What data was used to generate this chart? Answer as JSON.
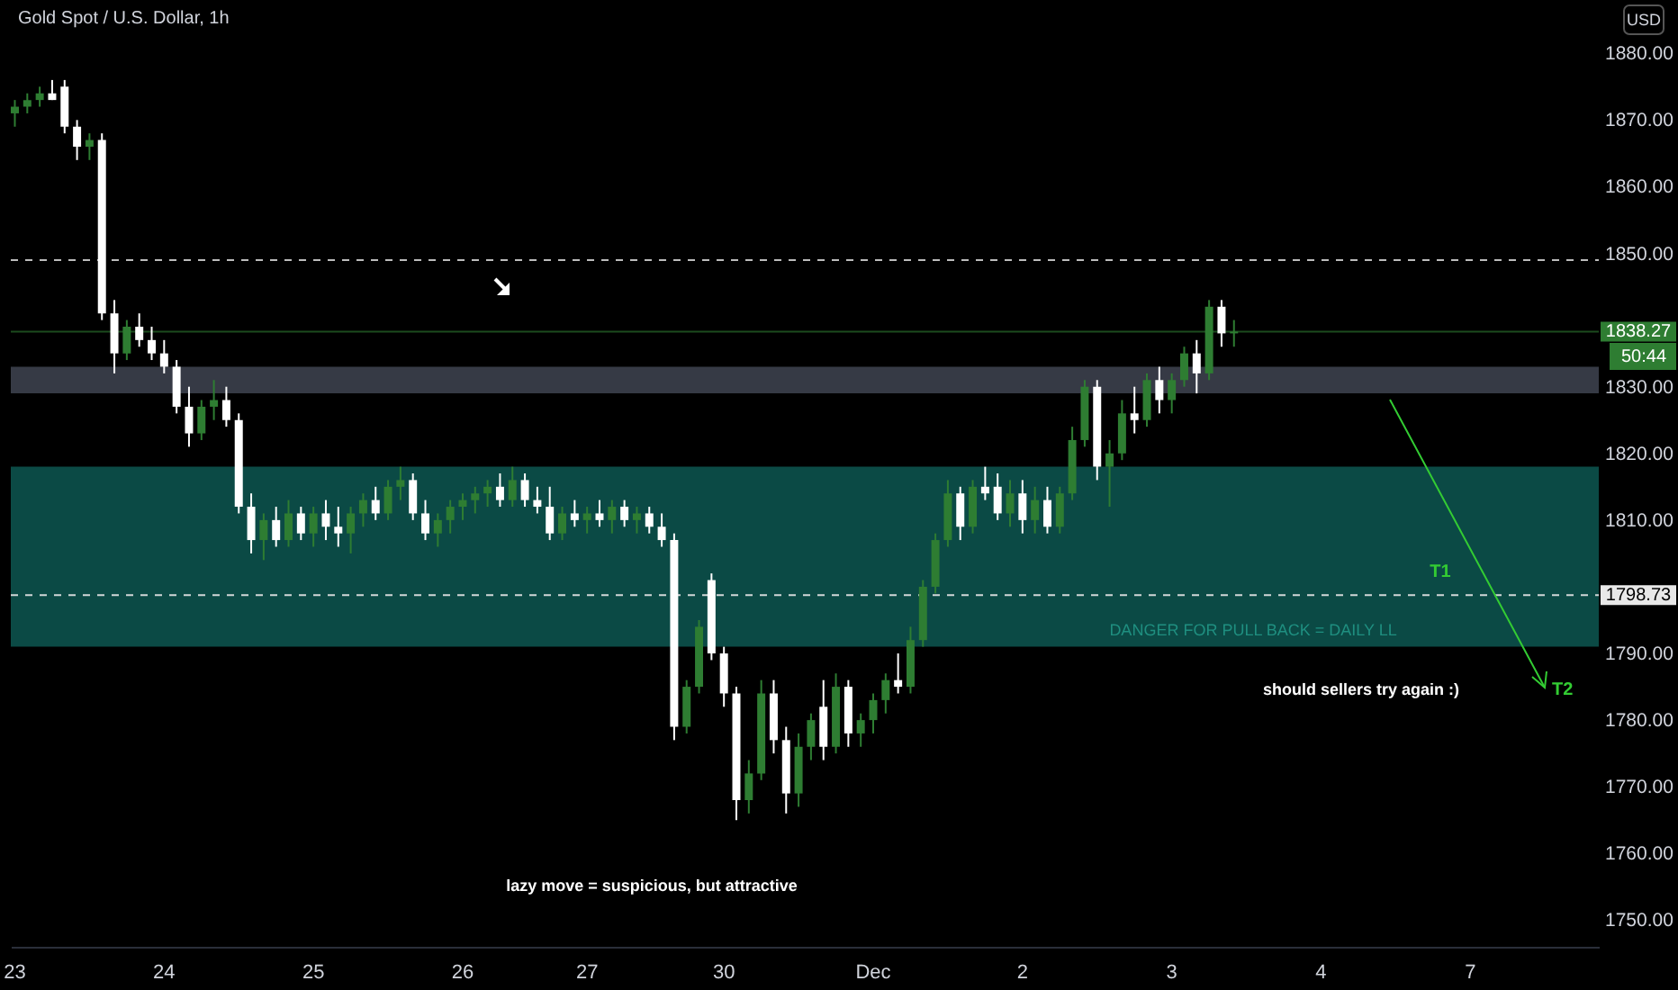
{
  "chart_data": {
    "type": "candlestick",
    "title": "Gold Spot / U.S. Dollar, 1h",
    "categories": [
      "23",
      null,
      null,
      null,
      null,
      null,
      null,
      null,
      null,
      null,
      null,
      null,
      "24",
      null,
      null,
      null,
      null,
      null,
      null,
      null,
      null,
      null,
      null,
      null,
      "25",
      null,
      null,
      null,
      null,
      null,
      null,
      null,
      null,
      null,
      null,
      null,
      "26",
      null,
      null,
      null,
      null,
      null,
      null,
      null,
      null,
      null,
      "27",
      null,
      null,
      null,
      null,
      null,
      null,
      null,
      null,
      null,
      null,
      "30",
      null,
      null,
      null,
      null,
      null,
      null,
      null,
      null,
      null,
      null,
      null,
      "Dec",
      null,
      null,
      null,
      null,
      null,
      null,
      null,
      null,
      null,
      null,
      null,
      "2",
      null,
      null,
      null,
      null,
      null,
      null,
      null,
      null,
      null,
      null,
      null,
      "3",
      null,
      null,
      null,
      null,
      null,
      null,
      null,
      null,
      null,
      null,
      null,
      "4",
      null,
      null,
      null,
      null,
      null,
      null,
      null,
      null,
      null,
      null,
      null,
      "7",
      null,
      null,
      null,
      null,
      null,
      null,
      null,
      null,
      null,
      null
    ],
    "ohlc": [
      [
        1871,
        1873,
        1869,
        1872
      ],
      [
        1872,
        1874,
        1871,
        1873
      ],
      [
        1873,
        1875,
        1872,
        1874
      ],
      [
        1874,
        1876,
        1873,
        1873
      ],
      [
        1875,
        1876,
        1868,
        1869
      ],
      [
        1869,
        1870,
        1864,
        1866
      ],
      [
        1866,
        1868,
        1864,
        1867
      ],
      [
        1867,
        1868,
        1840,
        1841
      ],
      [
        1841,
        1843,
        1832,
        1835
      ],
      [
        1835,
        1840,
        1834,
        1839
      ],
      [
        1839,
        1841,
        1836,
        1837
      ],
      [
        1837,
        1839,
        1834,
        1835
      ],
      [
        1835,
        1837,
        1832,
        1833
      ],
      [
        1833,
        1834,
        1826,
        1827
      ],
      [
        1827,
        1830,
        1821,
        1823
      ],
      [
        1823,
        1828,
        1822,
        1827
      ],
      [
        1827,
        1831,
        1825,
        1828
      ],
      [
        1828,
        1830,
        1824,
        1825
      ],
      [
        1825,
        1826,
        1811,
        1812
      ],
      [
        1812,
        1814,
        1805,
        1807
      ],
      [
        1807,
        1811,
        1804,
        1810
      ],
      [
        1810,
        1812,
        1806,
        1807
      ],
      [
        1807,
        1813,
        1806,
        1811
      ],
      [
        1811,
        1812,
        1807,
        1808
      ],
      [
        1808,
        1812,
        1806,
        1811
      ],
      [
        1811,
        1813,
        1807,
        1809
      ],
      [
        1809,
        1812,
        1806,
        1808
      ],
      [
        1808,
        1812,
        1805,
        1811
      ],
      [
        1811,
        1814,
        1809,
        1813
      ],
      [
        1813,
        1815,
        1810,
        1811
      ],
      [
        1811,
        1816,
        1810,
        1815
      ],
      [
        1815,
        1818,
        1813,
        1816
      ],
      [
        1816,
        1817,
        1810,
        1811
      ],
      [
        1811,
        1813,
        1807,
        1808
      ],
      [
        1808,
        1811,
        1806,
        1810
      ],
      [
        1810,
        1813,
        1808,
        1812
      ],
      [
        1812,
        1814,
        1810,
        1813
      ],
      [
        1813,
        1815,
        1811,
        1814
      ],
      [
        1814,
        1816,
        1812,
        1815
      ],
      [
        1815,
        1817,
        1812,
        1813
      ],
      [
        1813,
        1818,
        1812,
        1816
      ],
      [
        1816,
        1817,
        1812,
        1813
      ],
      [
        1813,
        1815,
        1811,
        1812
      ],
      [
        1812,
        1815,
        1807,
        1808
      ],
      [
        1808,
        1812,
        1807,
        1811
      ],
      [
        1811,
        1813,
        1809,
        1810
      ],
      [
        1810,
        1812,
        1808,
        1811
      ],
      [
        1811,
        1813,
        1809,
        1810
      ],
      [
        1810,
        1813,
        1808,
        1812
      ],
      [
        1812,
        1813,
        1809,
        1810
      ],
      [
        1810,
        1812,
        1808,
        1811
      ],
      [
        1811,
        1812,
        1808,
        1809
      ],
      [
        1809,
        1811,
        1806,
        1807
      ],
      [
        1807,
        1808,
        1777,
        1779
      ],
      [
        1779,
        1786,
        1778,
        1785
      ],
      [
        1785,
        1795,
        1784,
        1794
      ],
      [
        1801,
        1802,
        1789,
        1790
      ],
      [
        1790,
        1791,
        1782,
        1784
      ],
      [
        1784,
        1785,
        1765,
        1768
      ],
      [
        1768,
        1774,
        1766,
        1772
      ],
      [
        1772,
        1786,
        1771,
        1784
      ],
      [
        1784,
        1786,
        1775,
        1777
      ],
      [
        1777,
        1779,
        1766,
        1769
      ],
      [
        1769,
        1778,
        1767,
        1776
      ],
      [
        1776,
        1781,
        1774,
        1780
      ],
      [
        1782,
        1786,
        1774,
        1776
      ],
      [
        1776,
        1787,
        1775,
        1785
      ],
      [
        1785,
        1786,
        1776,
        1778
      ],
      [
        1778,
        1781,
        1776,
        1780
      ],
      [
        1780,
        1784,
        1778,
        1783
      ],
      [
        1783,
        1787,
        1781,
        1786
      ],
      [
        1786,
        1790,
        1784,
        1785
      ],
      [
        1785,
        1794,
        1784,
        1792
      ],
      [
        1792,
        1801,
        1791,
        1800
      ],
      [
        1800,
        1808,
        1799,
        1807
      ],
      [
        1807,
        1816,
        1806,
        1814
      ],
      [
        1814,
        1815,
        1807,
        1809
      ],
      [
        1809,
        1816,
        1808,
        1815
      ],
      [
        1815,
        1818,
        1813,
        1814
      ],
      [
        1815,
        1817,
        1810,
        1811
      ],
      [
        1811,
        1816,
        1809,
        1814
      ],
      [
        1814,
        1816,
        1808,
        1810
      ],
      [
        1810,
        1815,
        1808,
        1813
      ],
      [
        1813,
        1815,
        1808,
        1809
      ],
      [
        1809,
        1815,
        1808,
        1814
      ],
      [
        1814,
        1824,
        1813,
        1822
      ],
      [
        1822,
        1831,
        1821,
        1830
      ],
      [
        1830,
        1831,
        1816,
        1818
      ],
      [
        1818,
        1822,
        1812,
        1820
      ],
      [
        1820,
        1828,
        1819,
        1826
      ],
      [
        1826,
        1830,
        1823,
        1825
      ],
      [
        1825,
        1832,
        1824,
        1831
      ],
      [
        1831,
        1833,
        1826,
        1828
      ],
      [
        1828,
        1832,
        1826,
        1831
      ],
      [
        1831,
        1836,
        1830,
        1835
      ],
      [
        1835,
        1837,
        1829,
        1832
      ],
      [
        1832,
        1843,
        1831,
        1842
      ],
      [
        1842,
        1843,
        1836,
        1838
      ],
      [
        1838,
        1840,
        1836,
        1838.27
      ],
      null,
      null,
      null,
      null,
      null,
      null,
      null,
      null,
      null,
      null,
      null,
      null,
      null,
      null,
      null,
      null,
      null,
      null,
      null,
      null,
      null,
      null,
      null,
      null,
      null,
      null,
      null,
      null,
      null
    ],
    "colors": [
      "#2e7d32",
      "#2e7d32",
      "#2e7d32",
      "#ffffff",
      "#ffffff",
      "#ffffff",
      "#2e7d32",
      "#ffffff",
      "#ffffff",
      "#2e7d32",
      "#ffffff",
      "#ffffff",
      "#ffffff",
      "#ffffff",
      "#ffffff",
      "#2e7d32",
      "#2e7d32",
      "#ffffff",
      "#ffffff",
      "#ffffff",
      "#2e7d32",
      "#ffffff",
      "#2e7d32",
      "#ffffff",
      "#2e7d32",
      "#ffffff",
      "#ffffff",
      "#2e7d32",
      "#2e7d32",
      "#ffffff",
      "#2e7d32",
      "#2e7d32",
      "#ffffff",
      "#ffffff",
      "#2e7d32",
      "#2e7d32",
      "#2e7d32",
      "#2e7d32",
      "#2e7d32",
      "#ffffff",
      "#2e7d32",
      "#ffffff",
      "#ffffff",
      "#ffffff",
      "#2e7d32",
      "#ffffff",
      "#2e7d32",
      "#ffffff",
      "#2e7d32",
      "#ffffff",
      "#2e7d32",
      "#ffffff",
      "#ffffff",
      "#ffffff",
      "#2e7d32",
      "#2e7d32",
      "#ffffff",
      "#ffffff",
      "#ffffff",
      "#2e7d32",
      "#2e7d32",
      "#ffffff",
      "#ffffff",
      "#2e7d32",
      "#2e7d32",
      "#ffffff",
      "#2e7d32",
      "#ffffff",
      "#2e7d32",
      "#2e7d32",
      "#2e7d32",
      "#ffffff",
      "#2e7d32",
      "#2e7d32",
      "#2e7d32",
      "#2e7d32",
      "#ffffff",
      "#2e7d32",
      "#ffffff",
      "#ffffff",
      "#2e7d32",
      "#ffffff",
      "#2e7d32",
      "#ffffff",
      "#2e7d32",
      "#2e7d32",
      "#2e7d32",
      "#ffffff",
      "#2e7d32",
      "#2e7d32",
      "#ffffff",
      "#2e7d32",
      "#ffffff",
      "#2e7d32",
      "#2e7d32",
      "#ffffff",
      "#2e7d32",
      "#ffffff",
      "#2e7d32",
      null,
      null,
      null,
      null,
      null,
      null,
      null,
      null,
      null,
      null,
      null,
      null,
      null,
      null,
      null,
      null,
      null,
      null,
      null,
      null,
      null,
      null,
      null,
      null,
      null,
      null,
      null,
      null,
      null
    ],
    "ylim": [
      1746,
      1888
    ],
    "yticks": [
      {
        "value": 1750,
        "label": "1750.00"
      },
      {
        "value": 1760,
        "label": "1760.00"
      },
      {
        "value": 1770,
        "label": "1770.00"
      },
      {
        "value": 1780,
        "label": "1780.00"
      },
      {
        "value": 1790,
        "label": "1790.00"
      },
      {
        "value": 1810,
        "label": "1810.00"
      },
      {
        "value": 1820,
        "label": "1820.00"
      },
      {
        "value": 1830,
        "label": "1830.00"
      },
      {
        "value": 1850,
        "label": "1850.00"
      },
      {
        "value": 1860,
        "label": "1860.00"
      },
      {
        "value": 1870,
        "label": "1870.00"
      },
      {
        "value": 1880,
        "label": "1880.00"
      }
    ],
    "bands": [
      {
        "axis": "y",
        "from": 1791,
        "to": 1818,
        "label": null,
        "color": "#0b4a45"
      },
      {
        "axis": "y",
        "from": 1829,
        "to": 1833,
        "label": null,
        "color": "#363a45"
      }
    ],
    "ref_lines": [
      {
        "axis": "y",
        "value": 1849,
        "label": null,
        "color": "#d0d0d0",
        "line_style": "dashed"
      },
      {
        "axis": "y",
        "value": 1838.27,
        "label": "1838.27",
        "color": "#2e7d32",
        "line_style": "solid"
      },
      {
        "axis": "y",
        "value": 1798.73,
        "label": "1798.73",
        "color": "#e8e8e8",
        "line_style": "dashed"
      }
    ],
    "annotations": [
      "DANGER FOR PULL BACK = DAILY LL",
      "should sellers try again :)",
      "lazy move = suspicious, but attractive",
      {
        "text": "T1",
        "y": 1798.73
      },
      {
        "text": "T2"
      },
      "50:44",
      "USD"
    ]
  }
}
